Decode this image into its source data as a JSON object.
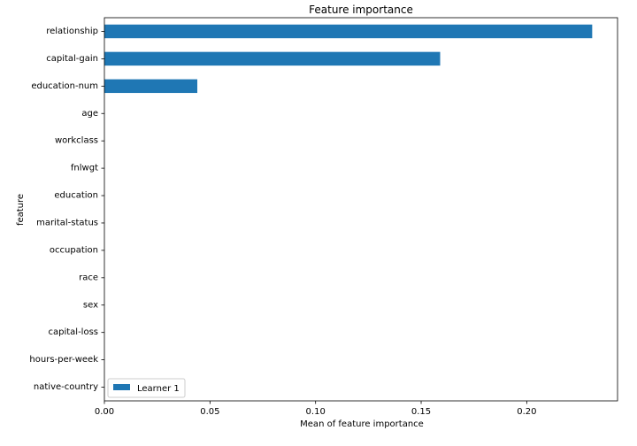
{
  "chart_data": {
    "type": "bar",
    "orientation": "horizontal",
    "title": "Feature importance",
    "xlabel": "Mean of feature importance",
    "ylabel": "feature",
    "categories": [
      "relationship",
      "capital-gain",
      "education-num",
      "age",
      "workclass",
      "fnlwgt",
      "education",
      "marital-status",
      "occupation",
      "race",
      "sex",
      "capital-loss",
      "hours-per-week",
      "native-country"
    ],
    "series": [
      {
        "name": "Learner 1",
        "color": "#1f77b4",
        "values": [
          0.231,
          0.159,
          0.044,
          0,
          0,
          0,
          0,
          0,
          0,
          0,
          0,
          0,
          0,
          0
        ]
      }
    ],
    "xlim": [
      0,
      0.243
    ],
    "xticks": [
      0.0,
      0.05,
      0.1,
      0.15,
      0.2
    ],
    "xtick_labels": [
      "0.00",
      "0.05",
      "0.10",
      "0.15",
      "0.20"
    ],
    "grid": false,
    "legend_position": "lower-left"
  }
}
